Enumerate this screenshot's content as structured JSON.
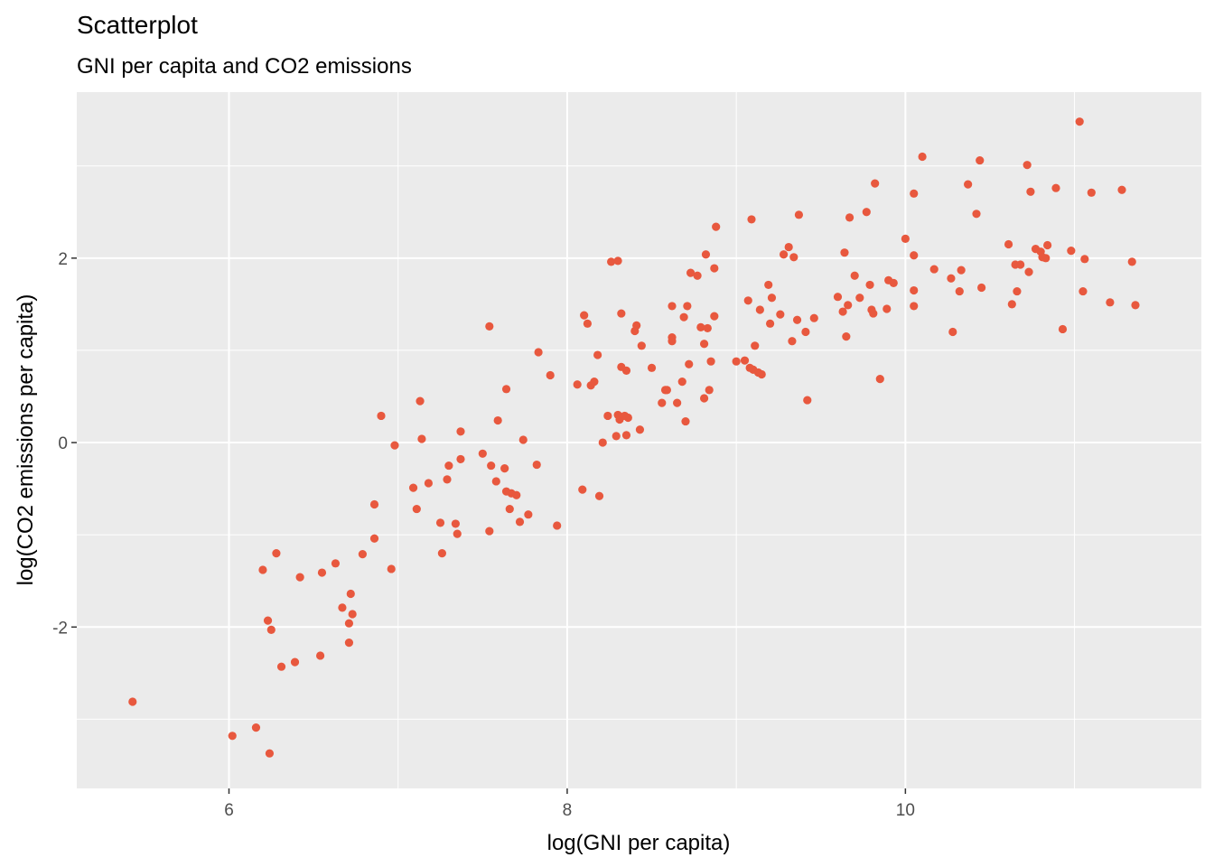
{
  "chart_data": {
    "type": "scatter",
    "title": "Scatterplot",
    "subtitle": "GNI per capita and CO2 emissions",
    "xlabel": "log(GNI per capita)",
    "ylabel": "log(CO2 emissions per capita)",
    "xlim": [
      5.1,
      11.75
    ],
    "ylim": [
      -3.75,
      3.8
    ],
    "x_ticks": [
      6,
      8,
      10
    ],
    "x_tick_labels": [
      "6",
      "8",
      "10"
    ],
    "y_ticks": [
      -2,
      0,
      2
    ],
    "y_tick_labels": [
      "-2",
      "0",
      "2"
    ],
    "grid": true,
    "legend": "none",
    "point_color": "#e8583e",
    "panel_bg": "#ebebeb",
    "points": [
      [
        5.43,
        -2.81
      ],
      [
        6.02,
        -3.18
      ],
      [
        6.16,
        -3.09
      ],
      [
        6.24,
        -3.37
      ],
      [
        6.2,
        -1.38
      ],
      [
        6.23,
        -1.93
      ],
      [
        6.25,
        -2.03
      ],
      [
        6.28,
        -1.2
      ],
      [
        6.31,
        -2.43
      ],
      [
        6.39,
        -2.38
      ],
      [
        6.42,
        -1.46
      ],
      [
        6.54,
        -2.31
      ],
      [
        6.55,
        -1.41
      ],
      [
        6.63,
        -1.31
      ],
      [
        6.67,
        -1.79
      ],
      [
        6.71,
        -1.96
      ],
      [
        6.71,
        -2.17
      ],
      [
        6.72,
        -1.64
      ],
      [
        6.73,
        -1.86
      ],
      [
        6.79,
        -1.21
      ],
      [
        6.86,
        -1.04
      ],
      [
        6.86,
        -0.67
      ],
      [
        6.9,
        0.29
      ],
      [
        6.96,
        -1.37
      ],
      [
        6.98,
        -0.03
      ],
      [
        7.09,
        -0.49
      ],
      [
        7.11,
        -0.72
      ],
      [
        7.13,
        0.45
      ],
      [
        7.14,
        0.04
      ],
      [
        7.18,
        -0.44
      ],
      [
        7.25,
        -0.87
      ],
      [
        7.26,
        -1.2
      ],
      [
        7.29,
        -0.4
      ],
      [
        7.3,
        -0.25
      ],
      [
        7.34,
        -0.88
      ],
      [
        7.35,
        -0.99
      ],
      [
        7.37,
        -0.18
      ],
      [
        7.37,
        0.12
      ],
      [
        7.5,
        -0.12
      ],
      [
        7.54,
        1.26
      ],
      [
        7.54,
        -0.96
      ],
      [
        7.55,
        -0.25
      ],
      [
        7.58,
        -0.42
      ],
      [
        7.59,
        0.24
      ],
      [
        7.63,
        -0.28
      ],
      [
        7.64,
        -0.53
      ],
      [
        7.64,
        0.58
      ],
      [
        7.66,
        -0.72
      ],
      [
        7.67,
        -0.55
      ],
      [
        7.7,
        -0.57
      ],
      [
        7.72,
        -0.86
      ],
      [
        7.74,
        0.03
      ],
      [
        7.77,
        -0.78
      ],
      [
        7.82,
        -0.24
      ],
      [
        7.83,
        0.98
      ],
      [
        7.9,
        0.73
      ],
      [
        7.94,
        -0.9
      ],
      [
        8.06,
        0.63
      ],
      [
        8.09,
        -0.51
      ],
      [
        8.1,
        1.38
      ],
      [
        8.12,
        1.29
      ],
      [
        8.14,
        0.62
      ],
      [
        8.16,
        0.66
      ],
      [
        8.18,
        0.95
      ],
      [
        8.19,
        -0.58
      ],
      [
        8.21,
        0.0
      ],
      [
        8.24,
        0.29
      ],
      [
        8.26,
        1.96
      ],
      [
        8.29,
        0.07
      ],
      [
        8.3,
        1.97
      ],
      [
        8.3,
        0.3
      ],
      [
        8.31,
        0.25
      ],
      [
        8.32,
        1.4
      ],
      [
        8.32,
        0.82
      ],
      [
        8.34,
        0.29
      ],
      [
        8.35,
        0.78
      ],
      [
        8.35,
        0.08
      ],
      [
        8.36,
        0.27
      ],
      [
        8.4,
        1.21
      ],
      [
        8.41,
        1.27
      ],
      [
        8.43,
        0.14
      ],
      [
        8.44,
        1.05
      ],
      [
        8.5,
        0.81
      ],
      [
        8.56,
        0.43
      ],
      [
        8.58,
        0.57
      ],
      [
        8.59,
        0.57
      ],
      [
        8.62,
        1.48
      ],
      [
        8.62,
        1.14
      ],
      [
        8.62,
        1.1
      ],
      [
        8.65,
        0.43
      ],
      [
        8.68,
        0.66
      ],
      [
        8.69,
        1.36
      ],
      [
        8.7,
        0.23
      ],
      [
        8.71,
        1.48
      ],
      [
        8.72,
        0.85
      ],
      [
        8.73,
        1.84
      ],
      [
        8.77,
        1.81
      ],
      [
        8.79,
        1.25
      ],
      [
        8.81,
        0.48
      ],
      [
        8.81,
        1.07
      ],
      [
        8.82,
        2.04
      ],
      [
        8.83,
        1.24
      ],
      [
        8.84,
        0.57
      ],
      [
        8.85,
        0.88
      ],
      [
        8.87,
        1.89
      ],
      [
        8.87,
        1.37
      ],
      [
        8.88,
        2.34
      ],
      [
        9.0,
        0.88
      ],
      [
        9.05,
        0.89
      ],
      [
        9.07,
        1.54
      ],
      [
        9.08,
        0.81
      ],
      [
        9.09,
        2.42
      ],
      [
        9.1,
        0.79
      ],
      [
        9.11,
        1.05
      ],
      [
        9.13,
        0.76
      ],
      [
        9.14,
        1.44
      ],
      [
        9.15,
        0.74
      ],
      [
        9.19,
        1.71
      ],
      [
        9.2,
        1.29
      ],
      [
        9.21,
        1.57
      ],
      [
        9.26,
        1.39
      ],
      [
        9.28,
        2.04
      ],
      [
        9.31,
        2.12
      ],
      [
        9.33,
        1.1
      ],
      [
        9.34,
        2.01
      ],
      [
        9.36,
        1.33
      ],
      [
        9.37,
        2.47
      ],
      [
        9.41,
        1.2
      ],
      [
        9.42,
        0.46
      ],
      [
        9.46,
        1.35
      ],
      [
        9.6,
        1.58
      ],
      [
        9.63,
        1.42
      ],
      [
        9.64,
        2.06
      ],
      [
        9.65,
        1.15
      ],
      [
        9.66,
        1.49
      ],
      [
        9.67,
        2.44
      ],
      [
        9.7,
        1.81
      ],
      [
        9.73,
        1.57
      ],
      [
        9.77,
        2.5
      ],
      [
        9.79,
        1.71
      ],
      [
        9.8,
        1.44
      ],
      [
        9.81,
        1.4
      ],
      [
        9.82,
        2.81
      ],
      [
        9.85,
        0.69
      ],
      [
        9.89,
        1.45
      ],
      [
        9.9,
        1.76
      ],
      [
        9.93,
        1.73
      ],
      [
        10.0,
        2.21
      ],
      [
        10.05,
        2.03
      ],
      [
        10.05,
        1.48
      ],
      [
        10.05,
        2.7
      ],
      [
        10.05,
        1.65
      ],
      [
        10.1,
        3.1
      ],
      [
        10.17,
        1.88
      ],
      [
        10.27,
        1.78
      ],
      [
        10.28,
        1.2
      ],
      [
        10.32,
        1.64
      ],
      [
        10.33,
        1.87
      ],
      [
        10.37,
        2.8
      ],
      [
        10.42,
        2.48
      ],
      [
        10.44,
        3.06
      ],
      [
        10.45,
        1.68
      ],
      [
        10.61,
        2.15
      ],
      [
        10.63,
        1.5
      ],
      [
        10.65,
        1.93
      ],
      [
        10.66,
        1.64
      ],
      [
        10.68,
        1.93
      ],
      [
        10.72,
        3.01
      ],
      [
        10.73,
        1.85
      ],
      [
        10.74,
        2.72
      ],
      [
        10.77,
        2.1
      ],
      [
        10.8,
        2.07
      ],
      [
        10.81,
        2.01
      ],
      [
        10.83,
        2.0
      ],
      [
        10.84,
        2.14
      ],
      [
        10.89,
        2.76
      ],
      [
        10.93,
        1.23
      ],
      [
        10.98,
        2.08
      ],
      [
        11.03,
        3.48
      ],
      [
        11.05,
        1.64
      ],
      [
        11.06,
        1.99
      ],
      [
        11.1,
        2.71
      ],
      [
        11.21,
        1.52
      ],
      [
        11.28,
        2.74
      ],
      [
        11.34,
        1.96
      ],
      [
        11.36,
        1.49
      ]
    ]
  }
}
